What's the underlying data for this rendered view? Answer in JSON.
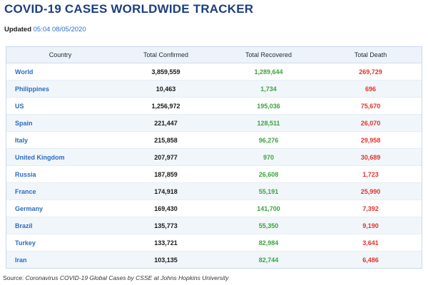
{
  "page": {
    "title": "COVID-19 CASES WORLDWIDE TRACKER",
    "updated_label": "Updated",
    "updated_timestamp": "05:04 08/05/2020",
    "source_label": "Source:",
    "source_text": "Coronavirus COVID-19 Global Cases by CSSE at Johns Hopkins University"
  },
  "table": {
    "headers": [
      "Country",
      "Total Confirmed",
      "Total Recovered",
      "Total Death"
    ],
    "rows": [
      {
        "country": "World",
        "confirmed": "3,859,559",
        "recovered": "1,289,644",
        "death": "269,729"
      },
      {
        "country": "Philippines",
        "confirmed": "10,463",
        "recovered": "1,734",
        "death": "696"
      },
      {
        "country": "US",
        "confirmed": "1,256,972",
        "recovered": "195,036",
        "death": "75,670"
      },
      {
        "country": "Spain",
        "confirmed": "221,447",
        "recovered": "128,511",
        "death": "26,070"
      },
      {
        "country": "Italy",
        "confirmed": "215,858",
        "recovered": "96,276",
        "death": "29,958"
      },
      {
        "country": "United Kingdom",
        "confirmed": "207,977",
        "recovered": "970",
        "death": "30,689"
      },
      {
        "country": "Russia",
        "confirmed": "187,859",
        "recovered": "26,608",
        "death": "1,723"
      },
      {
        "country": "France",
        "confirmed": "174,918",
        "recovered": "55,191",
        "death": "25,990"
      },
      {
        "country": "Germany",
        "confirmed": "169,430",
        "recovered": "141,700",
        "death": "7,392"
      },
      {
        "country": "Brazil",
        "confirmed": "135,773",
        "recovered": "55,350",
        "death": "9,190"
      },
      {
        "country": "Turkey",
        "confirmed": "133,721",
        "recovered": "82,984",
        "death": "3,641"
      },
      {
        "country": "Iran",
        "confirmed": "103,135",
        "recovered": "82,744",
        "death": "6,486"
      }
    ]
  },
  "colors": {
    "title": "#1d3f7f",
    "timestamp": "#2c6fcf",
    "country": "#2b6cc0",
    "recovered": "#3da33d",
    "death": "#e0332b"
  }
}
